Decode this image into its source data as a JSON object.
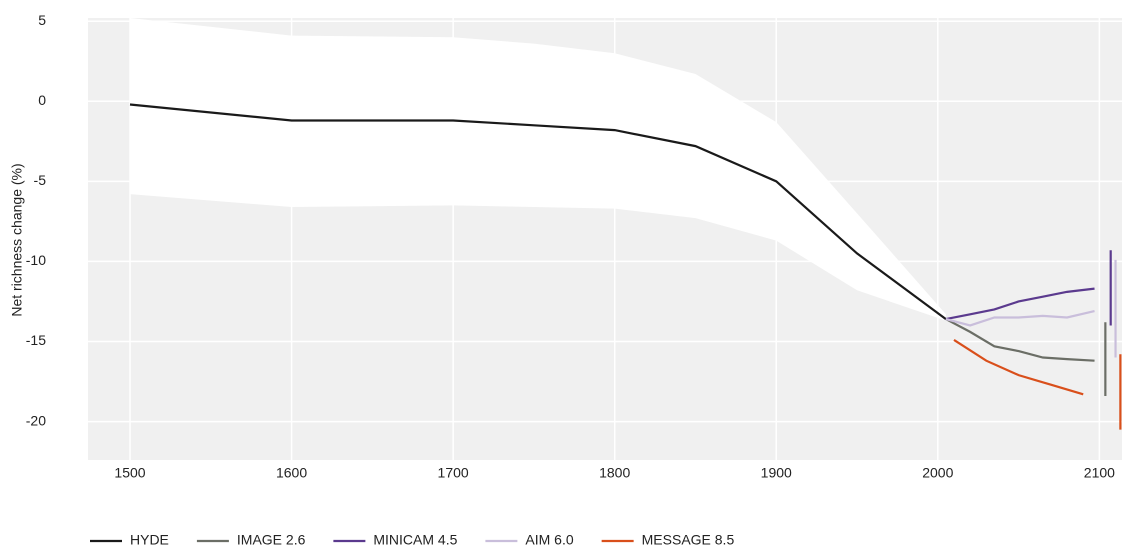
{
  "chart_data": {
    "type": "line",
    "ylabel": "Net richness change (%)",
    "xlim": [
      1474,
      2114
    ],
    "ylim": [
      -22.4,
      5.2
    ],
    "xticks": [
      1500,
      1600,
      1700,
      1800,
      1900,
      2000,
      2100
    ],
    "yticks": [
      5,
      0,
      -5,
      -10,
      -15,
      -20
    ],
    "grid": true,
    "legend": "bottom",
    "band": {
      "color": "#ffffff",
      "x": [
        1500,
        1600,
        1700,
        1750,
        1800,
        1850,
        1900,
        1950,
        2005
      ],
      "upper": [
        5.2,
        4.1,
        4.0,
        3.6,
        3.0,
        1.7,
        -1.3,
        -7.0,
        -13.3
      ],
      "lower": [
        -5.8,
        -6.6,
        -6.5,
        -6.6,
        -6.7,
        -7.3,
        -8.7,
        -11.8,
        -13.7
      ]
    },
    "series": [
      {
        "name": "HYDE",
        "color": "#1a1a1a",
        "x": [
          1500,
          1600,
          1700,
          1750,
          1800,
          1850,
          1900,
          1950,
          2005
        ],
        "values": [
          -0.2,
          -1.2,
          -1.2,
          -1.5,
          -1.8,
          -2.8,
          -5.0,
          -9.5,
          -13.6
        ]
      },
      {
        "name": "IMAGE 2.6",
        "color": "#6b6e66",
        "x": [
          2005,
          2020,
          2035,
          2050,
          2065,
          2080,
          2097
        ],
        "values": [
          -13.6,
          -14.4,
          -15.3,
          -15.6,
          -16.0,
          -16.1,
          -16.2
        ],
        "range": {
          "x": 2103.7,
          "values": [
            -13.8,
            -18.4
          ]
        }
      },
      {
        "name": "MINICAM 4.5",
        "color": "#5b3a8e",
        "x": [
          2005,
          2020,
          2035,
          2050,
          2065,
          2080,
          2097
        ],
        "values": [
          -13.6,
          -13.3,
          -13.0,
          -12.5,
          -12.2,
          -11.9,
          -11.7
        ],
        "range": {
          "x": 2107,
          "values": [
            -9.3,
            -14.0
          ]
        }
      },
      {
        "name": "AIM 6.0",
        "color": "#c9bedb",
        "x": [
          2005,
          2020,
          2035,
          2050,
          2065,
          2080,
          2097
        ],
        "values": [
          -13.6,
          -14.0,
          -13.5,
          -13.5,
          -13.4,
          -13.5,
          -13.1
        ],
        "range": {
          "x": 2110,
          "values": [
            -9.9,
            -16.0
          ]
        }
      },
      {
        "name": "MESSAGE 8.5",
        "color": "#d94f1b",
        "x": [
          2010,
          2030,
          2050,
          2070,
          2090
        ],
        "values": [
          -14.9,
          -16.2,
          -17.1,
          -17.7,
          -18.3
        ],
        "range": {
          "x": 2113,
          "values": [
            -15.8,
            -20.5
          ]
        }
      }
    ]
  }
}
